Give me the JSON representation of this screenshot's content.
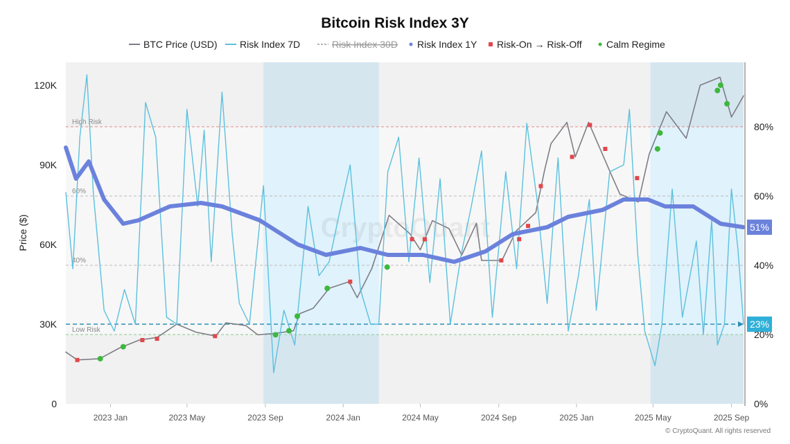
{
  "chart_data": {
    "type": "line",
    "title": "Bitcoin Risk Index 3Y",
    "ylabel": "Price ($)",
    "ylabel_right": "",
    "x_range": [
      "2022-10-23",
      "2025-09-20"
    ],
    "ylim": [
      0,
      128600
    ],
    "ylim_right": [
      0,
      98.6
    ],
    "x_ticks": [
      {
        "date": "2023-01-01",
        "label": "2023 Jan"
      },
      {
        "date": "2023-05-01",
        "label": "2023 May"
      },
      {
        "date": "2023-09-01",
        "label": "2023 Sep"
      },
      {
        "date": "2024-01-01",
        "label": "2024 Jan"
      },
      {
        "date": "2024-05-01",
        "label": "2024 May"
      },
      {
        "date": "2024-09-01",
        "label": "2024 Sep"
      },
      {
        "date": "2025-01-01",
        "label": "2025 Jan"
      },
      {
        "date": "2025-05-01",
        "label": "2025 May"
      },
      {
        "date": "2025-09-01",
        "label": "2025 Sep"
      }
    ],
    "y_ticks": [
      {
        "v": 0,
        "label": "0"
      },
      {
        "v": 30000,
        "label": "30K"
      },
      {
        "v": 60000,
        "label": "60K"
      },
      {
        "v": 90000,
        "label": "90K"
      },
      {
        "v": 120000,
        "label": "120K"
      }
    ],
    "y_ticks_right": [
      {
        "v": 0,
        "label": "0%"
      },
      {
        "v": 20,
        "label": "20%"
      },
      {
        "v": 40,
        "label": "40%"
      },
      {
        "v": 60,
        "label": "60%"
      },
      {
        "v": 80,
        "label": "80%"
      }
    ],
    "legend_position": "top",
    "legend": [
      {
        "name": "BTC Price (USD)",
        "style": "line",
        "color": "#7d7d85"
      },
      {
        "name": "Risk Index 7D",
        "style": "line",
        "color": "#5bc0de"
      },
      {
        "name": "Risk Index 30D",
        "style": "dashed",
        "color": "#999999",
        "hidden": true
      },
      {
        "name": "Risk Index 1Y",
        "style": "dot",
        "color": "#6b82dc"
      },
      {
        "name": "Risk-On → Risk-Off",
        "style": "square",
        "color": "#e0474c"
      },
      {
        "name": "Calm Regime",
        "style": "dot",
        "color": "#3db83d"
      }
    ],
    "reference_lines": [
      {
        "value": 80,
        "label": "High Risk",
        "color": "#e08a8a"
      },
      {
        "value": 60,
        "label": "60%",
        "color": "#bbbbbb"
      },
      {
        "value": 40,
        "label": "40%",
        "color": "#bbbbbb"
      },
      {
        "value": 20,
        "label": "Low Risk",
        "color": "#8cc98c"
      }
    ],
    "shaded_regions": [
      {
        "start": "2023-08-29",
        "end": "2024-02-26"
      },
      {
        "start": "2025-04-27",
        "end": "2025-09-20"
      }
    ],
    "current_labels": [
      {
        "series": "Risk Index 1Y",
        "value": 51,
        "label": "51%",
        "color": "#6b82dc"
      },
      {
        "series": "Risk Index 7D",
        "value": 23,
        "label": "23%",
        "color": "#2fb0d8"
      }
    ],
    "series": [
      {
        "name": "BTC Price (USD)",
        "axis": "left",
        "color": "#7d7d85",
        "points": [
          [
            "2022-10-23",
            19500
          ],
          [
            "2022-11-10",
            16500
          ],
          [
            "2022-12-15",
            17000
          ],
          [
            "2023-01-15",
            21000
          ],
          [
            "2023-02-15",
            24000
          ],
          [
            "2023-03-15",
            25000
          ],
          [
            "2023-04-15",
            30000
          ],
          [
            "2023-05-15",
            27000
          ],
          [
            "2023-06-15",
            25500
          ],
          [
            "2023-07-01",
            30500
          ],
          [
            "2023-08-01",
            29500
          ],
          [
            "2023-08-20",
            26000
          ],
          [
            "2023-09-15",
            26500
          ],
          [
            "2023-10-15",
            27500
          ],
          [
            "2023-10-25",
            34000
          ],
          [
            "2023-11-15",
            36000
          ],
          [
            "2023-12-10",
            43500
          ],
          [
            "2024-01-10",
            46000
          ],
          [
            "2024-01-23",
            40000
          ],
          [
            "2024-02-15",
            51000
          ],
          [
            "2024-03-13",
            71000
          ],
          [
            "2024-04-15",
            64000
          ],
          [
            "2024-05-01",
            58000
          ],
          [
            "2024-05-20",
            69000
          ],
          [
            "2024-06-15",
            66000
          ],
          [
            "2024-07-05",
            56000
          ],
          [
            "2024-07-28",
            68000
          ],
          [
            "2024-08-05",
            54000
          ],
          [
            "2024-09-06",
            54000
          ],
          [
            "2024-09-28",
            65000
          ],
          [
            "2024-10-29",
            72000
          ],
          [
            "2024-11-12",
            88000
          ],
          [
            "2024-11-22",
            98000
          ],
          [
            "2024-12-17",
            106000
          ],
          [
            "2024-12-30",
            93000
          ],
          [
            "2025-01-20",
            106000
          ],
          [
            "2025-02-25",
            86000
          ],
          [
            "2025-03-10",
            79000
          ],
          [
            "2025-04-08",
            76000
          ],
          [
            "2025-04-25",
            94000
          ],
          [
            "2025-05-22",
            110000
          ],
          [
            "2025-06-22",
            100000
          ],
          [
            "2025-07-14",
            120000
          ],
          [
            "2025-08-14",
            123000
          ],
          [
            "2025-09-01",
            108000
          ],
          [
            "2025-09-20",
            116000
          ]
        ]
      },
      {
        "name": "Risk Index 7D",
        "axis": "right",
        "color": "#5bc0de",
        "points": [
          [
            "2022-10-23",
            61
          ],
          [
            "2022-11-03",
            39
          ],
          [
            "2022-11-14",
            77
          ],
          [
            "2022-11-25",
            95
          ],
          [
            "2022-12-05",
            61
          ],
          [
            "2022-12-22",
            27
          ],
          [
            "2023-01-07",
            21
          ],
          [
            "2023-01-23",
            33
          ],
          [
            "2023-02-09",
            23
          ],
          [
            "2023-02-25",
            87
          ],
          [
            "2023-03-13",
            77
          ],
          [
            "2023-03-30",
            25
          ],
          [
            "2023-04-15",
            23
          ],
          [
            "2023-05-01",
            85
          ],
          [
            "2023-05-18",
            57
          ],
          [
            "2023-05-28",
            79
          ],
          [
            "2023-06-08",
            41
          ],
          [
            "2023-06-25",
            90
          ],
          [
            "2023-07-11",
            49
          ],
          [
            "2023-07-22",
            29
          ],
          [
            "2023-08-07",
            23
          ],
          [
            "2023-08-29",
            63
          ],
          [
            "2023-09-14",
            9
          ],
          [
            "2023-09-30",
            27
          ],
          [
            "2023-10-17",
            17
          ],
          [
            "2023-11-07",
            57
          ],
          [
            "2023-11-24",
            37
          ],
          [
            "2023-12-10",
            41
          ],
          [
            "2023-12-26",
            55
          ],
          [
            "2024-01-12",
            69
          ],
          [
            "2024-01-28",
            33
          ],
          [
            "2024-02-13",
            23
          ],
          [
            "2024-02-26",
            23
          ],
          [
            "2024-03-11",
            67
          ],
          [
            "2024-03-28",
            77
          ],
          [
            "2024-04-13",
            41
          ],
          [
            "2024-04-29",
            71
          ],
          [
            "2024-05-16",
            35
          ],
          [
            "2024-06-01",
            65
          ],
          [
            "2024-06-17",
            23
          ],
          [
            "2024-07-04",
            43
          ],
          [
            "2024-07-20",
            57
          ],
          [
            "2024-08-05",
            73
          ],
          [
            "2024-08-22",
            25
          ],
          [
            "2024-09-12",
            67
          ],
          [
            "2024-09-29",
            39
          ],
          [
            "2024-10-15",
            81
          ],
          [
            "2024-10-31",
            59
          ],
          [
            "2024-11-16",
            29
          ],
          [
            "2024-12-03",
            71
          ],
          [
            "2024-12-19",
            21
          ],
          [
            "2025-01-04",
            37
          ],
          [
            "2025-01-21",
            59
          ],
          [
            "2025-02-01",
            27
          ],
          [
            "2025-02-22",
            67
          ],
          [
            "2025-03-16",
            69
          ],
          [
            "2025-03-25",
            85
          ],
          [
            "2025-04-07",
            43
          ],
          [
            "2025-04-18",
            21
          ],
          [
            "2025-05-04",
            11
          ],
          [
            "2025-05-15",
            23
          ],
          [
            "2025-05-31",
            62
          ],
          [
            "2025-06-16",
            25
          ],
          [
            "2025-07-08",
            47
          ],
          [
            "2025-07-19",
            20
          ],
          [
            "2025-08-01",
            53
          ],
          [
            "2025-08-10",
            17
          ],
          [
            "2025-08-21",
            23
          ],
          [
            "2025-09-01",
            62
          ],
          [
            "2025-09-11",
            45
          ],
          [
            "2025-09-20",
            23
          ]
        ]
      },
      {
        "name": "Risk Index 1Y",
        "axis": "right",
        "color": "#6b82dc",
        "points": [
          [
            "2022-10-23",
            74
          ],
          [
            "2022-11-08",
            65
          ],
          [
            "2022-11-28",
            70
          ],
          [
            "2022-12-22",
            59
          ],
          [
            "2023-01-21",
            52
          ],
          [
            "2023-02-14",
            53
          ],
          [
            "2023-04-04",
            57
          ],
          [
            "2023-05-23",
            58
          ],
          [
            "2023-06-25",
            57
          ],
          [
            "2023-08-23",
            53
          ],
          [
            "2023-10-22",
            46
          ],
          [
            "2023-12-05",
            43
          ],
          [
            "2024-01-28",
            45
          ],
          [
            "2024-03-11",
            43
          ],
          [
            "2024-05-05",
            43
          ],
          [
            "2024-06-23",
            41
          ],
          [
            "2024-08-11",
            44
          ],
          [
            "2024-09-23",
            49
          ],
          [
            "2024-11-16",
            51
          ],
          [
            "2024-12-19",
            54
          ],
          [
            "2025-02-11",
            56
          ],
          [
            "2025-03-16",
            59
          ],
          [
            "2025-04-23",
            59
          ],
          [
            "2025-05-20",
            57
          ],
          [
            "2025-07-03",
            57
          ],
          [
            "2025-08-15",
            52
          ],
          [
            "2025-09-20",
            51
          ]
        ]
      }
    ],
    "markers": {
      "risk_on_off": {
        "name": "Risk-On → Risk-Off",
        "color": "#e0474c",
        "points": [
          [
            "2022-11-10",
            16500
          ],
          [
            "2023-02-20",
            24000
          ],
          [
            "2023-03-15",
            24500
          ],
          [
            "2023-06-14",
            25500
          ],
          [
            "2024-01-12",
            46000
          ],
          [
            "2024-04-18",
            62000
          ],
          [
            "2024-05-08",
            62000
          ],
          [
            "2024-09-05",
            54000
          ],
          [
            "2024-10-03",
            62000
          ],
          [
            "2024-10-17",
            67000
          ],
          [
            "2024-11-06",
            82000
          ],
          [
            "2024-12-25",
            93000
          ],
          [
            "2025-01-22",
            105000
          ],
          [
            "2025-02-15",
            96000
          ],
          [
            "2025-04-06",
            85000
          ]
        ]
      },
      "calm": {
        "name": "Calm Regime",
        "color": "#3db83d",
        "points": [
          [
            "2022-12-16",
            17000
          ],
          [
            "2023-01-21",
            21500
          ],
          [
            "2023-09-17",
            26000
          ],
          [
            "2023-10-08",
            27500
          ],
          [
            "2023-10-21",
            33000
          ],
          [
            "2023-12-07",
            43500
          ],
          [
            "2024-03-10",
            51500
          ],
          [
            "2025-05-08",
            96000
          ],
          [
            "2025-05-12",
            102000
          ],
          [
            "2025-08-10",
            118000
          ],
          [
            "2025-08-15",
            120000
          ],
          [
            "2025-08-25",
            113000
          ]
        ]
      }
    },
    "watermark": "CryptoQuant",
    "footer": "© CryptoQuant. All rights reserved"
  }
}
